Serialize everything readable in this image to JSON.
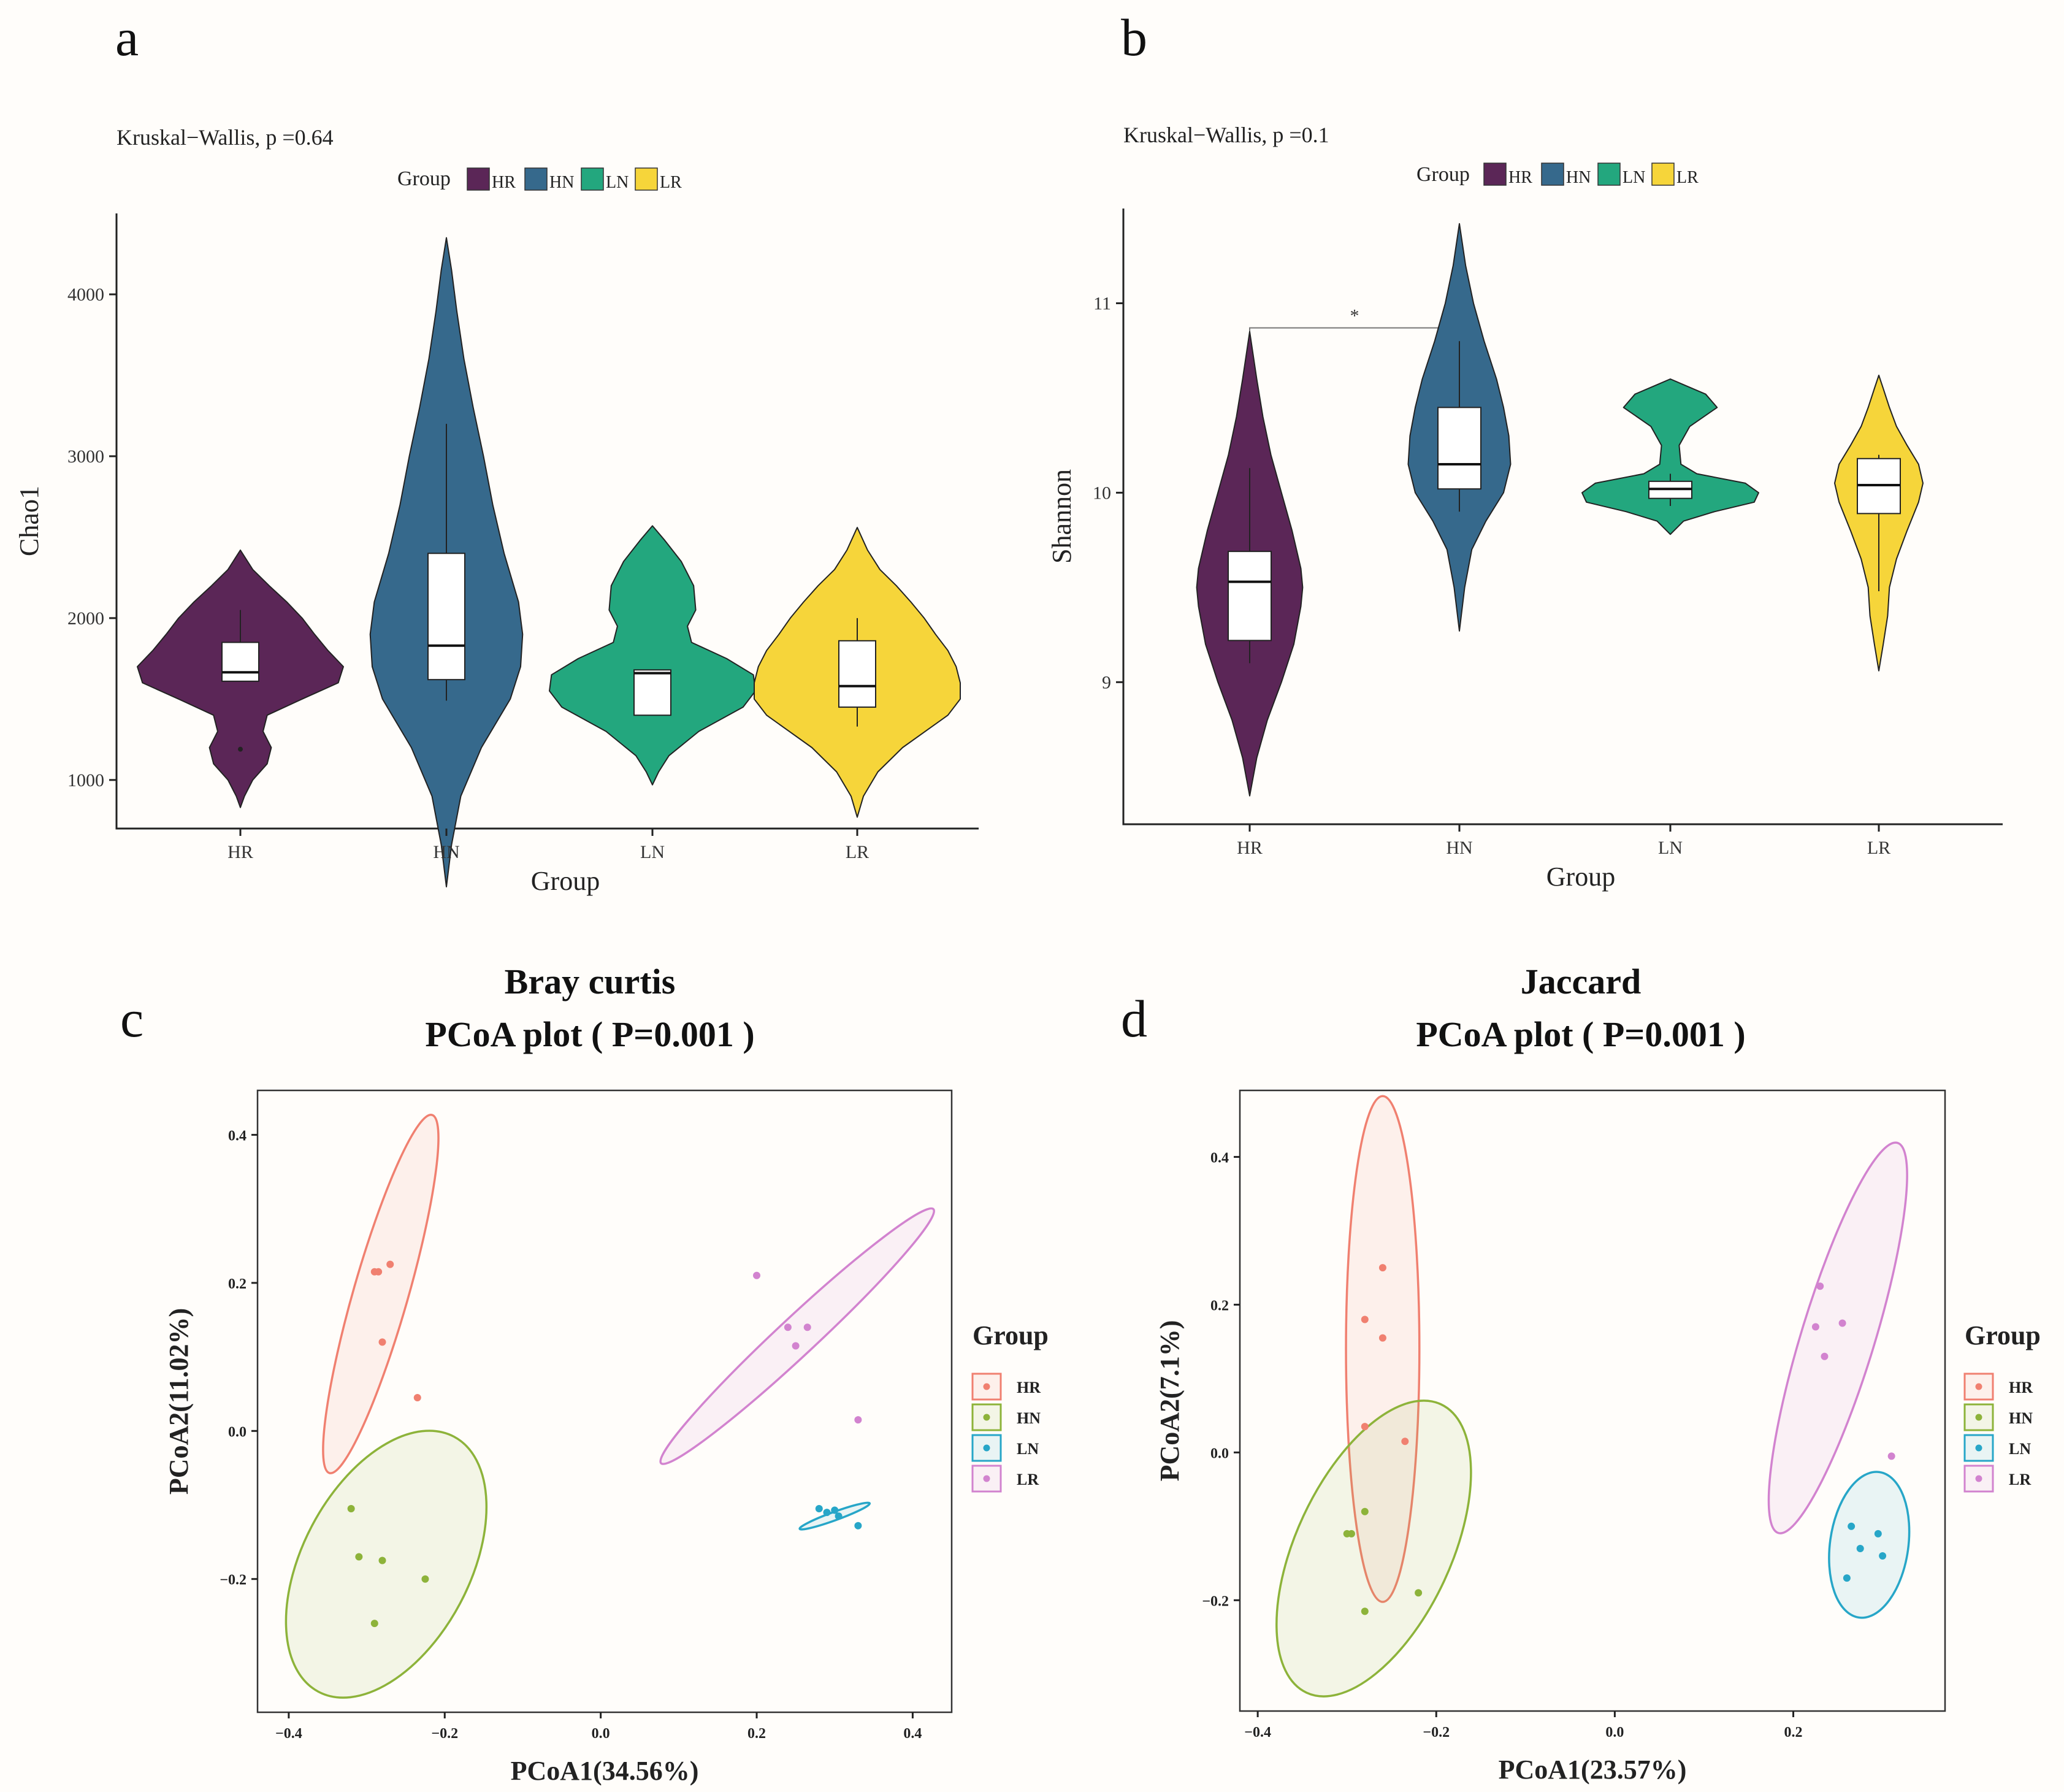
{
  "panels": {
    "a": {
      "letter": "a",
      "stat": "Kruskal−Wallis, p =0.64"
    },
    "b": {
      "letter": "b",
      "stat": "Kruskal−Wallis, p =0.1",
      "signif_marker": "*"
    },
    "c": {
      "letter": "c",
      "title_line1": "Bray curtis",
      "title_line2": "PCoA plot ( P=0.001 )"
    },
    "d": {
      "letter": "d",
      "title_line1": "Jaccard",
      "title_line2": "PCoA plot ( P=0.001 )"
    }
  },
  "legend_group_title": "Group",
  "colors": {
    "violin": {
      "HR": "#5b2657",
      "HN": "#36698c",
      "LN": "#23a77e",
      "LR": "#f6d53a"
    },
    "pcoa": {
      "HR": "#f08070",
      "HN": "#8db33a",
      "LN": "#27a6c8",
      "LR": "#d283cf"
    }
  },
  "chart_data": [
    {
      "id": "a",
      "type": "violin",
      "xlabel": "Group",
      "ylabel": "Chao1",
      "categories": [
        "HR",
        "HN",
        "LN",
        "LR"
      ],
      "ylim": [
        700,
        4500
      ],
      "yticks": [
        1000,
        2000,
        3000,
        4000
      ],
      "legend": [
        "HR",
        "HN",
        "LN",
        "LR"
      ],
      "boxes": [
        {
          "group": "HR",
          "q1": 1610,
          "median": 1665,
          "q3": 1850,
          "whisker_low": 1610,
          "whisker_high": 2050,
          "outliers": [
            1190
          ]
        },
        {
          "group": "HN",
          "q1": 1620,
          "median": 1830,
          "q3": 2400,
          "whisker_low": 1490,
          "whisker_high": 3200,
          "outliers": []
        },
        {
          "group": "LN",
          "q1": 1400,
          "median": 1660,
          "q3": 1680,
          "whisker_low": 1400,
          "whisker_high": 1680,
          "outliers": []
        },
        {
          "group": "LR",
          "q1": 1450,
          "median": 1580,
          "q3": 1860,
          "whisker_low": 1330,
          "whisker_high": 2000,
          "outliers": []
        }
      ],
      "violins": [
        {
          "group": "HR",
          "ymin": 830,
          "ymax": 2420,
          "profile": [
            [
              830,
              0
            ],
            [
              900,
              0.04
            ],
            [
              1000,
              0.12
            ],
            [
              1100,
              0.26
            ],
            [
              1200,
              0.3
            ],
            [
              1300,
              0.22
            ],
            [
              1400,
              0.26
            ],
            [
              1500,
              0.6
            ],
            [
              1600,
              0.95
            ],
            [
              1700,
              1.0
            ],
            [
              1800,
              0.85
            ],
            [
              1900,
              0.72
            ],
            [
              2000,
              0.6
            ],
            [
              2100,
              0.45
            ],
            [
              2200,
              0.28
            ],
            [
              2300,
              0.12
            ],
            [
              2420,
              0
            ]
          ]
        },
        {
          "group": "HN",
          "ymin": 340,
          "ymax": 4350,
          "profile": [
            [
              340,
              0
            ],
            [
              600,
              0.05
            ],
            [
              900,
              0.14
            ],
            [
              1200,
              0.34
            ],
            [
              1500,
              0.62
            ],
            [
              1700,
              0.72
            ],
            [
              1900,
              0.74
            ],
            [
              2100,
              0.7
            ],
            [
              2400,
              0.56
            ],
            [
              2700,
              0.45
            ],
            [
              3000,
              0.36
            ],
            [
              3300,
              0.26
            ],
            [
              3600,
              0.17
            ],
            [
              3900,
              0.1
            ],
            [
              4150,
              0.05
            ],
            [
              4350,
              0
            ]
          ]
        },
        {
          "group": "LN",
          "ymin": 970,
          "ymax": 2570,
          "profile": [
            [
              970,
              0
            ],
            [
              1050,
              0.06
            ],
            [
              1150,
              0.16
            ],
            [
              1300,
              0.45
            ],
            [
              1450,
              0.88
            ],
            [
              1550,
              1.0
            ],
            [
              1650,
              0.98
            ],
            [
              1750,
              0.72
            ],
            [
              1850,
              0.38
            ],
            [
              1950,
              0.34
            ],
            [
              2050,
              0.42
            ],
            [
              2200,
              0.4
            ],
            [
              2350,
              0.28
            ],
            [
              2480,
              0.12
            ],
            [
              2570,
              0
            ]
          ]
        },
        {
          "group": "LR",
          "ymin": 770,
          "ymax": 2560,
          "profile": [
            [
              770,
              0
            ],
            [
              900,
              0.06
            ],
            [
              1050,
              0.2
            ],
            [
              1200,
              0.44
            ],
            [
              1300,
              0.66
            ],
            [
              1400,
              0.88
            ],
            [
              1500,
              1.0
            ],
            [
              1600,
              1.0
            ],
            [
              1700,
              0.96
            ],
            [
              1800,
              0.88
            ],
            [
              1900,
              0.76
            ],
            [
              2000,
              0.65
            ],
            [
              2100,
              0.52
            ],
            [
              2200,
              0.38
            ],
            [
              2300,
              0.22
            ],
            [
              2420,
              0.1
            ],
            [
              2560,
              0
            ]
          ]
        }
      ]
    },
    {
      "id": "b",
      "type": "violin",
      "xlabel": "Group",
      "ylabel": "Shannon",
      "categories": [
        "HR",
        "HN",
        "LN",
        "LR"
      ],
      "ylim": [
        8.25,
        11.5
      ],
      "yticks": [
        9,
        10,
        11
      ],
      "legend": [
        "HR",
        "HN",
        "LN",
        "LR"
      ],
      "comparison": {
        "from": "HR",
        "to": "HN",
        "y": 10.87,
        "label": "*"
      },
      "boxes": [
        {
          "group": "HR",
          "q1": 9.22,
          "median": 9.53,
          "q3": 9.69,
          "whisker_low": 9.1,
          "whisker_high": 10.13,
          "outliers": []
        },
        {
          "group": "HN",
          "q1": 10.02,
          "median": 10.15,
          "q3": 10.45,
          "whisker_low": 9.9,
          "whisker_high": 10.8,
          "outliers": []
        },
        {
          "group": "LN",
          "q1": 9.97,
          "median": 10.02,
          "q3": 10.06,
          "whisker_low": 9.93,
          "whisker_high": 10.1,
          "outliers": []
        },
        {
          "group": "LR",
          "q1": 9.89,
          "median": 10.04,
          "q3": 10.18,
          "whisker_low": 9.48,
          "whisker_high": 10.2,
          "outliers": []
        }
      ],
      "violins": [
        {
          "group": "HR",
          "ymin": 8.4,
          "ymax": 10.85,
          "profile": [
            [
              8.4,
              0
            ],
            [
              8.6,
              0.08
            ],
            [
              8.8,
              0.2
            ],
            [
              9.0,
              0.36
            ],
            [
              9.2,
              0.5
            ],
            [
              9.4,
              0.58
            ],
            [
              9.5,
              0.6
            ],
            [
              9.6,
              0.58
            ],
            [
              9.8,
              0.48
            ],
            [
              10.0,
              0.36
            ],
            [
              10.2,
              0.24
            ],
            [
              10.4,
              0.15
            ],
            [
              10.6,
              0.08
            ],
            [
              10.85,
              0
            ]
          ]
        },
        {
          "group": "HN",
          "ymin": 9.27,
          "ymax": 11.42,
          "profile": [
            [
              9.27,
              0
            ],
            [
              9.5,
              0.06
            ],
            [
              9.7,
              0.14
            ],
            [
              9.85,
              0.3
            ],
            [
              10.0,
              0.5
            ],
            [
              10.15,
              0.58
            ],
            [
              10.3,
              0.56
            ],
            [
              10.45,
              0.5
            ],
            [
              10.6,
              0.42
            ],
            [
              10.8,
              0.28
            ],
            [
              11.0,
              0.16
            ],
            [
              11.2,
              0.07
            ],
            [
              11.42,
              0
            ]
          ]
        },
        {
          "group": "LN",
          "ymin": 9.78,
          "ymax": 10.6,
          "profile": [
            [
              9.78,
              0
            ],
            [
              9.85,
              0.15
            ],
            [
              9.9,
              0.5
            ],
            [
              9.95,
              0.95
            ],
            [
              10.0,
              1.0
            ],
            [
              10.05,
              0.85
            ],
            [
              10.1,
              0.3
            ],
            [
              10.15,
              0.12
            ],
            [
              10.25,
              0.1
            ],
            [
              10.35,
              0.22
            ],
            [
              10.45,
              0.53
            ],
            [
              10.52,
              0.4
            ],
            [
              10.57,
              0.15
            ],
            [
              10.6,
              0
            ]
          ]
        },
        {
          "group": "LR",
          "ymin": 9.06,
          "ymax": 10.62,
          "profile": [
            [
              9.06,
              0
            ],
            [
              9.2,
              0.05
            ],
            [
              9.35,
              0.1
            ],
            [
              9.5,
              0.12
            ],
            [
              9.65,
              0.2
            ],
            [
              9.8,
              0.32
            ],
            [
              9.95,
              0.45
            ],
            [
              10.05,
              0.5
            ],
            [
              10.15,
              0.45
            ],
            [
              10.25,
              0.32
            ],
            [
              10.35,
              0.2
            ],
            [
              10.45,
              0.12
            ],
            [
              10.55,
              0.05
            ],
            [
              10.62,
              0
            ]
          ]
        }
      ]
    },
    {
      "id": "c",
      "type": "scatter",
      "title": "Bray curtis PCoA plot ( P=0.001 )",
      "xlabel": "PCoA1(34.56%)",
      "ylabel": "PCoA2(11.02%)",
      "xlim": [
        -0.44,
        0.45
      ],
      "ylim": [
        -0.38,
        0.46
      ],
      "xticks": [
        -0.4,
        -0.2,
        0.0,
        0.2,
        0.4
      ],
      "yticks": [
        -0.2,
        0.0,
        0.2,
        0.4
      ],
      "legend": [
        "HR",
        "HN",
        "LN",
        "LR"
      ],
      "series": [
        {
          "name": "HR",
          "points": [
            [
              -0.29,
              0.215
            ],
            [
              -0.285,
              0.215
            ],
            [
              -0.27,
              0.225
            ],
            [
              -0.28,
              0.12
            ],
            [
              -0.235,
              0.045
            ]
          ],
          "ellipse": {
            "cx": -0.282,
            "cy": 0.185,
            "rx": 0.245,
            "ry": 0.036,
            "angle": -74
          }
        },
        {
          "name": "HN",
          "points": [
            [
              -0.32,
              -0.105
            ],
            [
              -0.31,
              -0.17
            ],
            [
              -0.28,
              -0.175
            ],
            [
              -0.29,
              -0.26
            ],
            [
              -0.225,
              -0.2
            ]
          ],
          "ellipse": {
            "cx": -0.275,
            "cy": -0.18,
            "rx": 0.19,
            "ry": 0.11,
            "angle": -62
          }
        },
        {
          "name": "LN",
          "points": [
            [
              0.28,
              -0.105
            ],
            [
              0.29,
              -0.11
            ],
            [
              0.3,
              -0.107
            ],
            [
              0.305,
              -0.115
            ],
            [
              0.33,
              -0.128
            ]
          ],
          "ellipse": {
            "cx": 0.3,
            "cy": -0.115,
            "rx": 0.049,
            "ry": 0.0055,
            "angle": -20
          }
        },
        {
          "name": "LR",
          "points": [
            [
              0.2,
              0.21
            ],
            [
              0.24,
              0.14
            ],
            [
              0.265,
              0.14
            ],
            [
              0.25,
              0.115
            ],
            [
              0.33,
              0.015
            ]
          ],
          "ellipse": {
            "cx": 0.252,
            "cy": 0.128,
            "rx": 0.245,
            "ry": 0.025,
            "angle": -43
          }
        }
      ]
    },
    {
      "id": "d",
      "type": "scatter",
      "title": "Jaccard PCoA plot ( P=0.001 )",
      "xlabel": "PCoA1(23.57%)",
      "ylabel": "PCoA2(7.1%)",
      "xlim": [
        -0.42,
        0.37
      ],
      "ylim": [
        -0.35,
        0.49
      ],
      "xticks": [
        -0.4,
        -0.2,
        0.0,
        0.2
      ],
      "yticks": [
        -0.2,
        0.0,
        0.2,
        0.4
      ],
      "legend": [
        "HR",
        "HN",
        "LN",
        "LR"
      ],
      "series": [
        {
          "name": "HR",
          "points": [
            [
              -0.28,
              0.18
            ],
            [
              -0.26,
              0.25
            ],
            [
              -0.26,
              0.155
            ],
            [
              -0.28,
              0.035
            ],
            [
              -0.235,
              0.015
            ]
          ],
          "ellipse": {
            "cx": -0.26,
            "cy": 0.14,
            "rx": 0.045,
            "ry": 0.31,
            "angle": 0
          }
        },
        {
          "name": "HN",
          "points": [
            [
              -0.3,
              -0.11
            ],
            [
              -0.295,
              -0.11
            ],
            [
              -0.28,
              -0.08
            ],
            [
              -0.28,
              -0.215
            ],
            [
              -0.22,
              -0.19
            ]
          ],
          "ellipse": {
            "cx": -0.27,
            "cy": -0.13,
            "rx": 0.195,
            "ry": 0.095,
            "angle": -65
          }
        },
        {
          "name": "LN",
          "points": [
            [
              0.265,
              -0.1
            ],
            [
              0.275,
              -0.13
            ],
            [
              0.295,
              -0.11
            ],
            [
              0.26,
              -0.17
            ],
            [
              0.3,
              -0.14
            ]
          ],
          "ellipse": {
            "cx": 0.285,
            "cy": -0.125,
            "rx": 0.09,
            "ry": 0.048,
            "angle": -82
          }
        },
        {
          "name": "LR",
          "points": [
            [
              0.23,
              0.225
            ],
            [
              0.255,
              0.175
            ],
            [
              0.225,
              0.17
            ],
            [
              0.235,
              0.13
            ],
            [
              0.31,
              -0.005
            ]
          ],
          "ellipse": {
            "cx": 0.25,
            "cy": 0.155,
            "rx": 0.25,
            "ry": 0.045,
            "angle": -73
          }
        }
      ]
    }
  ]
}
